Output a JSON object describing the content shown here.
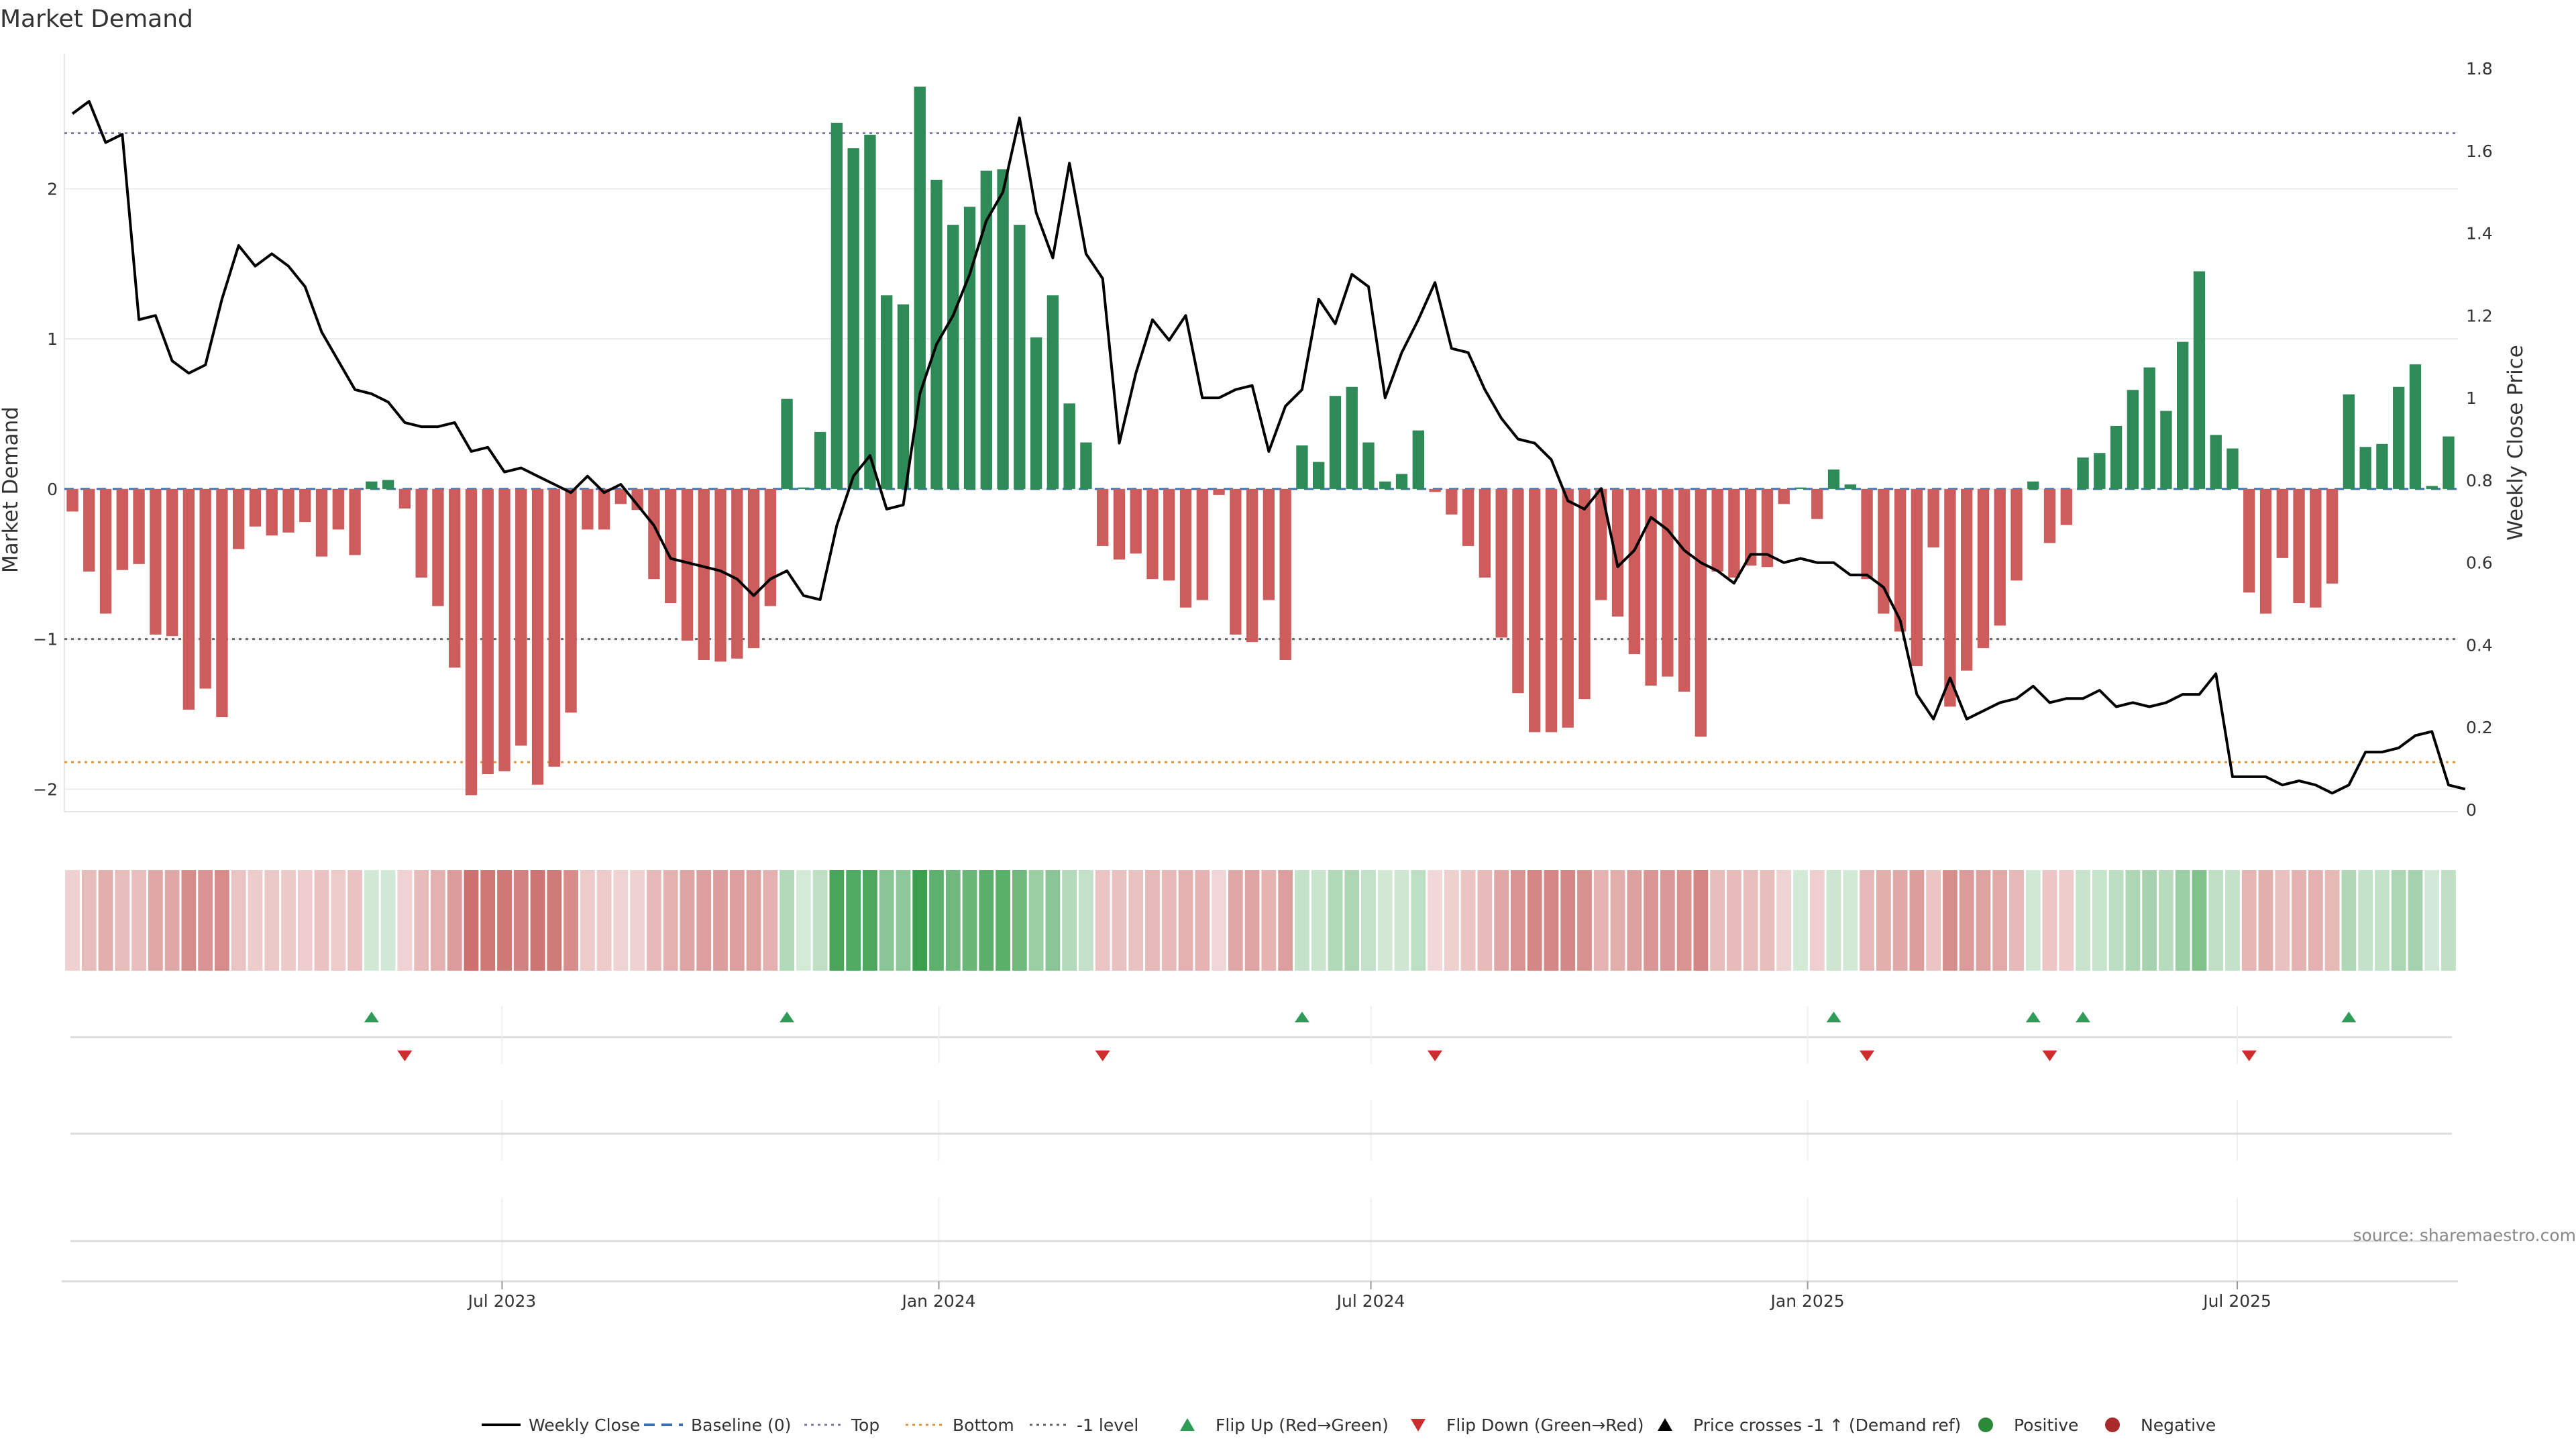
{
  "chart_data": {
    "type": "bar",
    "title": "Market Demand",
    "ylabel": "Market Demand",
    "y2label": "Weekly Close Price",
    "ylim": [
      -2.15,
      2.9
    ],
    "y2lim": [
      0,
      1.8
    ],
    "yticks": [
      -2,
      -1,
      0,
      1,
      2
    ],
    "y2ticks": [
      0,
      0.2,
      0.4,
      0.6,
      0.8,
      1,
      1.2,
      1.4,
      1.6,
      1.8
    ],
    "x_start": "2023-01-01",
    "x_step_days": 7,
    "xtick_labels": [
      "Jul 2023",
      "Jan 2024",
      "Jul 2024",
      "Jan 2025",
      "Jul 2025"
    ],
    "xtick_dates": [
      "2023-07-01",
      "2024-01-01",
      "2024-07-01",
      "2025-01-01",
      "2025-07-01"
    ],
    "reference_lines": {
      "top": 2.37,
      "bottom": -1.82,
      "minus_one": -1,
      "baseline": 0
    },
    "demand": [
      -0.15,
      -0.55,
      -0.83,
      -0.54,
      -0.5,
      -0.97,
      -0.98,
      -1.47,
      -1.33,
      -1.52,
      -0.4,
      -0.25,
      -0.31,
      -0.29,
      -0.22,
      -0.45,
      -0.27,
      -0.44,
      0.05,
      0.06,
      -0.13,
      -0.59,
      -0.78,
      -1.19,
      -2.04,
      -1.9,
      -1.88,
      -1.71,
      -1.97,
      -1.85,
      -1.49,
      -0.27,
      -0.27,
      -0.1,
      -0.14,
      -0.6,
      -0.76,
      -1.01,
      -1.14,
      -1.15,
      -1.13,
      -1.06,
      -0.78,
      0.6,
      0.01,
      0.38,
      2.44,
      2.27,
      2.36,
      1.29,
      1.23,
      2.68,
      2.06,
      1.76,
      1.88,
      2.12,
      2.13,
      1.76,
      1.01,
      1.29,
      0.57,
      0.31,
      -0.38,
      -0.47,
      -0.43,
      -0.6,
      -0.61,
      -0.79,
      -0.74,
      -0.04,
      -0.97,
      -1.02,
      -0.74,
      -1.14,
      0.29,
      0.18,
      0.62,
      0.68,
      0.31,
      0.05,
      0.1,
      0.39,
      -0.02,
      -0.17,
      -0.38,
      -0.59,
      -0.99,
      -1.36,
      -1.62,
      -1.62,
      -1.59,
      -1.4,
      -0.74,
      -0.85,
      -1.1,
      -1.31,
      -1.25,
      -1.35,
      -1.65,
      -0.55,
      -0.59,
      -0.51,
      -0.52,
      -0.1,
      0.01,
      -0.2,
      0.13,
      0.03,
      -0.6,
      -0.83,
      -0.95,
      -1.18,
      -0.39,
      -1.45,
      -1.21,
      -1.06,
      -0.91,
      -0.61,
      0.05,
      -0.36,
      -0.24,
      0.21,
      0.24,
      0.42,
      0.66,
      0.81,
      0.52,
      0.98,
      1.45,
      0.36,
      0.27,
      -0.69,
      -0.83,
      -0.46,
      -0.76,
      -0.79,
      -0.63,
      0.63,
      0.28,
      0.3,
      0.68,
      0.83,
      0.02,
      0.35
    ],
    "price": [
      1.69,
      1.72,
      1.62,
      1.64,
      1.19,
      1.2,
      1.09,
      1.06,
      1.08,
      1.24,
      1.37,
      1.32,
      1.35,
      1.32,
      1.27,
      1.16,
      1.09,
      1.02,
      1.01,
      0.99,
      0.94,
      0.93,
      0.93,
      0.94,
      0.87,
      0.88,
      0.82,
      0.83,
      0.81,
      0.79,
      0.77,
      0.81,
      0.77,
      0.79,
      0.74,
      0.69,
      0.61,
      0.6,
      0.59,
      0.58,
      0.56,
      0.52,
      0.56,
      0.58,
      0.52,
      0.51,
      0.69,
      0.81,
      0.86,
      0.73,
      0.74,
      1.01,
      1.13,
      1.2,
      1.3,
      1.43,
      1.5,
      1.68,
      1.45,
      1.34,
      1.57,
      1.35,
      1.29,
      0.89,
      1.06,
      1.19,
      1.14,
      1.2,
      1.0,
      1.0,
      1.02,
      1.03,
      0.87,
      0.98,
      1.02,
      1.24,
      1.18,
      1.3,
      1.27,
      1.0,
      1.11,
      1.19,
      1.28,
      1.12,
      1.11,
      1.02,
      0.95,
      0.9,
      0.89,
      0.85,
      0.75,
      0.73,
      0.78,
      0.59,
      0.63,
      0.71,
      0.68,
      0.63,
      0.6,
      0.58,
      0.55,
      0.62,
      0.62,
      0.6,
      0.61,
      0.6,
      0.6,
      0.57,
      0.57,
      0.54,
      0.46,
      0.28,
      0.22,
      0.32,
      0.22,
      0.24,
      0.26,
      0.27,
      0.3,
      0.26,
      0.27,
      0.27,
      0.29,
      0.25,
      0.26,
      0.25,
      0.26,
      0.28,
      0.28,
      0.33,
      0.08,
      0.08,
      0.08,
      0.06,
      0.07,
      0.06,
      0.04,
      0.06,
      0.14,
      0.14,
      0.15,
      0.18,
      0.19,
      0.06,
      0.05
    ],
    "flip_up_weeks": [
      18,
      43,
      74,
      106,
      118,
      121,
      137
    ],
    "flip_down_weeks": [
      20,
      62,
      82,
      108,
      119,
      131
    ],
    "date_gridlines": [
      "2023-07-01",
      "2024-01-01",
      "2024-07-01",
      "2025-01-01",
      "2025-07-01"
    ],
    "source": "source: sharemaestro.com",
    "legend_position": "bottom",
    "legend": [
      {
        "label": "Weekly Close",
        "kind": "line",
        "color": "#000000"
      },
      {
        "label": "Baseline (0)",
        "kind": "dash",
        "color": "#3d6fb0"
      },
      {
        "label": "Top",
        "kind": "dot",
        "color": "#7a7aaa"
      },
      {
        "label": "Bottom",
        "kind": "dot",
        "color": "#e8943a"
      },
      {
        "label": "-1 level",
        "kind": "dot",
        "color": "#666666"
      },
      {
        "label": "Flip Up (Red→Green)",
        "kind": "tri-up",
        "color": "#2e9c57"
      },
      {
        "label": "Flip Down (Green→Red)",
        "kind": "tri-down",
        "color": "#cc2e2e"
      },
      {
        "label": "Price crosses -1 ↑ (Demand ref)",
        "kind": "tri-up",
        "color": "#000000"
      },
      {
        "label": "Positive",
        "kind": "dot-marker",
        "color": "#2a8a3a"
      },
      {
        "label": "Negative",
        "kind": "dot-marker",
        "color": "#a82a2a"
      }
    ],
    "colors": {
      "positive_bar": "#2e8b57",
      "negative_bar": "#cd5c5c",
      "price_line": "#000000",
      "heat_positive": "#3a9f4c",
      "heat_negative": "#c0504d"
    }
  }
}
